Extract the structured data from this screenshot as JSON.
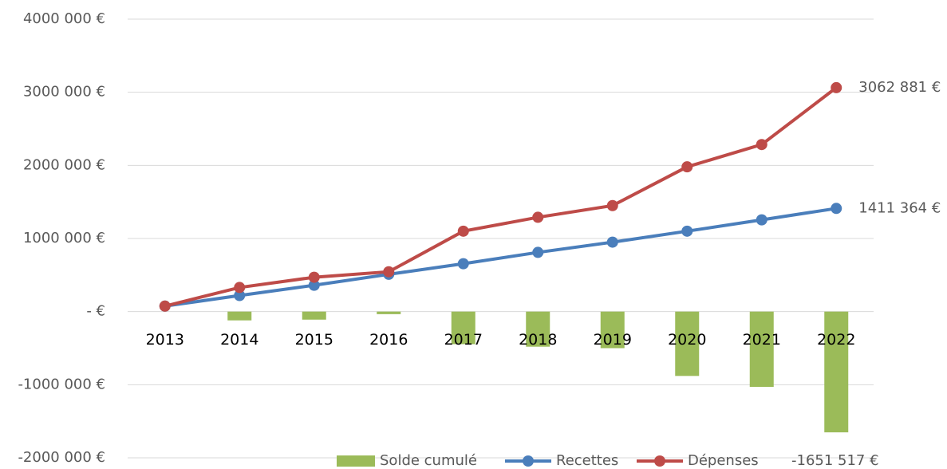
{
  "chart_data": {
    "type": "combo",
    "categories": [
      "2013",
      "2014",
      "2015",
      "2016",
      "2017",
      "2018",
      "2019",
      "2020",
      "2021",
      "2022"
    ],
    "series": [
      {
        "name": "Solde cumulé",
        "type": "bar",
        "color": "#9bbb59",
        "values": [
          0,
          -120000,
          -110000,
          -35000,
          -445000,
          -480000,
          -500000,
          -880000,
          -1030000,
          -1651517
        ],
        "value_labels": [
          null,
          null,
          null,
          null,
          null,
          null,
          null,
          null,
          null,
          "-1651 517 €"
        ]
      },
      {
        "name": "Recettes",
        "type": "line",
        "color": "#4a7ebb",
        "values": [
          75000,
          220000,
          360000,
          510000,
          655000,
          810000,
          950000,
          1100000,
          1255000,
          1411364
        ],
        "value_labels": [
          null,
          null,
          null,
          null,
          null,
          null,
          null,
          null,
          null,
          "1411 364 €"
        ]
      },
      {
        "name": "Dépenses",
        "type": "line",
        "color": "#be4b48",
        "values": [
          75000,
          330000,
          470000,
          545000,
          1100000,
          1290000,
          1450000,
          1980000,
          2285000,
          3062881
        ],
        "value_labels": [
          null,
          null,
          null,
          null,
          null,
          null,
          null,
          null,
          null,
          "3062 881 €"
        ]
      }
    ],
    "ylim": [
      -2000000,
      4000000
    ],
    "yticks": [
      {
        "value": -2000000,
        "label": "-2000 000 €"
      },
      {
        "value": -1000000,
        "label": "-1000 000 €"
      },
      {
        "value": 0,
        "label": "-   €"
      },
      {
        "value": 1000000,
        "label": "1000 000 €"
      },
      {
        "value": 2000000,
        "label": "2000 000 €"
      },
      {
        "value": 3000000,
        "label": "3000 000 €"
      },
      {
        "value": 4000000,
        "label": "4000 000 €"
      }
    ],
    "grid": true,
    "legend": "bottom"
  }
}
